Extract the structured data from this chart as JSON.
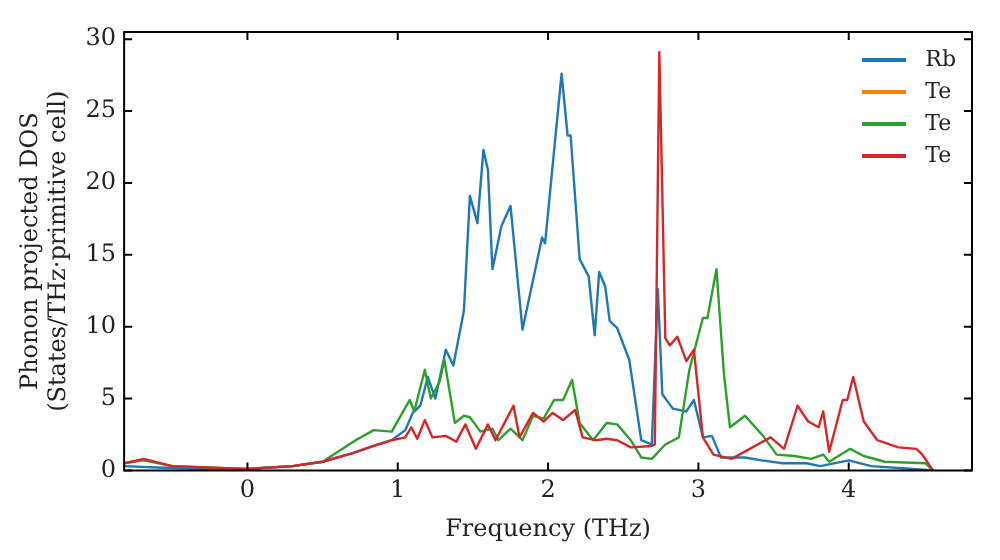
{
  "chart_data": {
    "type": "line",
    "xlabel": "Frequency (THz)",
    "ylabel": "Phonon projected DOS\n(States/THz·primitive cell)",
    "xlim": [
      -0.82,
      4.82
    ],
    "ylim": [
      0,
      30.5
    ],
    "xticks": [
      0,
      1,
      2,
      3,
      4
    ],
    "yticks": [
      0,
      5,
      10,
      15,
      20,
      25,
      30
    ],
    "grid": false,
    "legend": "top right",
    "marker": "none",
    "line_style": "solid",
    "series": [
      {
        "name": "Rb",
        "color": "#1f77b4",
        "x": [
          -0.82,
          -0.6,
          -0.3,
          0,
          0.3,
          0.5,
          0.7,
          0.84,
          0.96,
          1.05,
          1.1,
          1.15,
          1.2,
          1.25,
          1.32,
          1.37,
          1.44,
          1.48,
          1.53,
          1.57,
          1.6,
          1.63,
          1.69,
          1.75,
          1.83,
          1.96,
          1.98,
          2.09,
          2.13,
          2.15,
          2.21,
          2.27,
          2.31,
          2.34,
          2.38,
          2.41,
          2.46,
          2.54,
          2.62,
          2.69,
          2.73,
          2.76,
          2.83,
          2.92,
          2.97,
          3.03,
          3.09,
          3.15,
          3.31,
          3.42,
          3.56,
          3.72,
          3.81,
          4.0,
          4.15,
          4.43,
          4.56
        ],
        "values": [
          0.3,
          0.2,
          0.1,
          0.1,
          0.3,
          0.6,
          1.2,
          1.7,
          2.1,
          2.8,
          4.0,
          4.5,
          6.5,
          5.0,
          8.4,
          7.3,
          11.1,
          19.1,
          17.2,
          22.3,
          20.9,
          14,
          17,
          18.4,
          9.8,
          16.2,
          15.8,
          27.6,
          23.3,
          23.3,
          14.7,
          13.5,
          9.4,
          13.8,
          12.8,
          10.4,
          9.9,
          7.7,
          2.1,
          1.8,
          12.6,
          5.3,
          4.3,
          4.1,
          4.9,
          2.3,
          2.4,
          0.9,
          0.9,
          0.7,
          0.5,
          0.5,
          0.3,
          0.7,
          0.3,
          0.1,
          0
        ]
      },
      {
        "name": "Te",
        "color": "#ff7f0e"
      },
      {
        "name": "Te",
        "color": "#2ca02c",
        "x": [
          -0.82,
          -0.69,
          -0.5,
          0,
          0.3,
          0.5,
          0.72,
          0.84,
          0.96,
          1.08,
          1.11,
          1.18,
          1.22,
          1.28,
          1.31,
          1.38,
          1.44,
          1.48,
          1.55,
          1.63,
          1.67,
          1.75,
          1.83,
          1.9,
          1.97,
          2.04,
          2.1,
          2.16,
          2.21,
          2.3,
          2.39,
          2.46,
          2.55,
          2.62,
          2.69,
          2.78,
          2.87,
          2.94,
          3.03,
          3.06,
          3.12,
          3.17,
          3.21,
          3.31,
          3.43,
          3.52,
          3.64,
          3.75,
          3.83,
          3.87,
          4.01,
          4.1,
          4.24,
          4.51,
          4.56
        ],
        "values": [
          0.5,
          0.7,
          0.3,
          0.1,
          0.3,
          0.6,
          2.1,
          2.8,
          2.7,
          4.9,
          4.1,
          7.0,
          5.0,
          6.2,
          7.7,
          3.3,
          3.8,
          3.7,
          2.7,
          2.9,
          2.1,
          2.9,
          2.1,
          3.8,
          3.6,
          4.9,
          4.9,
          6.3,
          3.3,
          2.1,
          3.3,
          3.2,
          2.1,
          0.9,
          0.8,
          1.8,
          2.3,
          7.0,
          10.6,
          10.6,
          14.0,
          6.7,
          3.0,
          3.8,
          2.4,
          1.1,
          1.0,
          0.8,
          1.1,
          0.6,
          1.5,
          1.0,
          0.6,
          0.5,
          0
        ]
      },
      {
        "name": "Te",
        "color": "#d62728",
        "x": [
          -0.82,
          -0.69,
          -0.5,
          0,
          0.3,
          0.5,
          0.7,
          0.84,
          0.96,
          1.05,
          1.09,
          1.13,
          1.18,
          1.23,
          1.32,
          1.39,
          1.45,
          1.52,
          1.6,
          1.65,
          1.77,
          1.81,
          1.9,
          1.97,
          2.03,
          2.1,
          2.18,
          2.23,
          2.32,
          2.39,
          2.46,
          2.55,
          2.69,
          2.71,
          2.74,
          2.78,
          2.81,
          2.86,
          2.92,
          2.97,
          3.03,
          3.1,
          3.22,
          3.36,
          3.48,
          3.57,
          3.66,
          3.73,
          3.8,
          3.83,
          3.87,
          3.96,
          3.99,
          4.03,
          4.1,
          4.19,
          4.33,
          4.45,
          4.49,
          4.56
        ],
        "values": [
          0.5,
          0.8,
          0.3,
          0.1,
          0.3,
          0.6,
          1.2,
          1.7,
          2.1,
          2.3,
          3.0,
          2.2,
          3.5,
          2.3,
          2.4,
          2.0,
          3.2,
          1.5,
          3.2,
          2.1,
          4.5,
          2.3,
          4.0,
          3.4,
          4.0,
          3.5,
          4.2,
          2.3,
          2.1,
          2.2,
          2.1,
          1.6,
          1.7,
          1.8,
          29.1,
          9.2,
          8.7,
          9.3,
          7.6,
          8.4,
          2.3,
          1.1,
          0.8,
          1.6,
          2.3,
          1.5,
          4.5,
          3.4,
          3.0,
          4.1,
          1.3,
          4.9,
          4.9,
          6.5,
          3.4,
          2.1,
          1.6,
          1.5,
          1.1,
          0
        ]
      }
    ]
  }
}
